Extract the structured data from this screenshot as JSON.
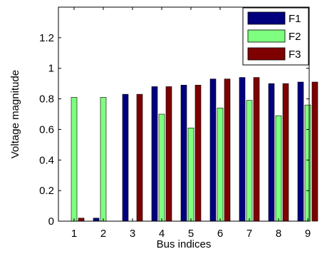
{
  "chart_data": {
    "type": "bar",
    "categories": [
      "1",
      "2",
      "3",
      "4",
      "5",
      "6",
      "7",
      "8",
      "9"
    ],
    "series": [
      {
        "name": "F1",
        "color": "#00007f",
        "values": [
          0.0,
          0.02,
          0.83,
          0.88,
          0.89,
          0.93,
          0.94,
          0.9,
          0.91
        ]
      },
      {
        "name": "F2",
        "color": "#7fff7f",
        "values": [
          0.81,
          0.81,
          0.0,
          0.7,
          0.61,
          0.74,
          0.79,
          0.69,
          0.76
        ]
      },
      {
        "name": "F3",
        "color": "#7f0000",
        "values": [
          0.02,
          0.0,
          0.83,
          0.88,
          0.89,
          0.93,
          0.94,
          0.9,
          0.91
        ]
      }
    ],
    "xlabel": "Bus indices",
    "ylabel": "Voltage magnitude",
    "ylim": [
      0,
      1.4
    ],
    "yticks": [
      "0",
      "0.2",
      "0.4",
      "0.6",
      "0.8",
      "1",
      "1.2"
    ],
    "legend_position": "top-right",
    "grid": false
  }
}
